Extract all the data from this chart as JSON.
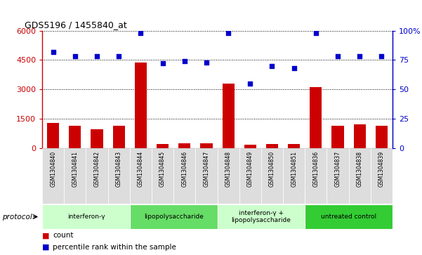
{
  "title": "GDS5196 / 1455840_at",
  "samples": [
    "GSM1304840",
    "GSM1304841",
    "GSM1304842",
    "GSM1304843",
    "GSM1304844",
    "GSM1304845",
    "GSM1304846",
    "GSM1304847",
    "GSM1304848",
    "GSM1304849",
    "GSM1304850",
    "GSM1304851",
    "GSM1304836",
    "GSM1304837",
    "GSM1304838",
    "GSM1304839"
  ],
  "counts": [
    1270,
    1150,
    950,
    1150,
    4350,
    200,
    230,
    230,
    3280,
    180,
    200,
    200,
    3100,
    1150,
    1200,
    1150
  ],
  "percentile_ranks": [
    82,
    78,
    78,
    78,
    98,
    72,
    74,
    73,
    98,
    55,
    70,
    68,
    98,
    78,
    78,
    78
  ],
  "groups": [
    {
      "label": "interferon-γ",
      "start": 0,
      "end": 4,
      "color": "#ccffcc"
    },
    {
      "label": "lipopolysaccharide",
      "start": 4,
      "end": 8,
      "color": "#66dd66"
    },
    {
      "label": "interferon-γ +\nlipopolysaccharide",
      "start": 8,
      "end": 12,
      "color": "#ccffcc"
    },
    {
      "label": "untreated control",
      "start": 12,
      "end": 16,
      "color": "#33cc33"
    }
  ],
  "ylim_left": [
    0,
    6000
  ],
  "ylim_right": [
    0,
    100
  ],
  "yticks_left": [
    0,
    1500,
    3000,
    4500,
    6000
  ],
  "yticks_right": [
    0,
    25,
    50,
    75,
    100
  ],
  "bar_color": "#cc0000",
  "dot_color": "#0000cc",
  "bar_width": 0.55,
  "left_color": "#cc0000",
  "right_color": "#0000cc"
}
